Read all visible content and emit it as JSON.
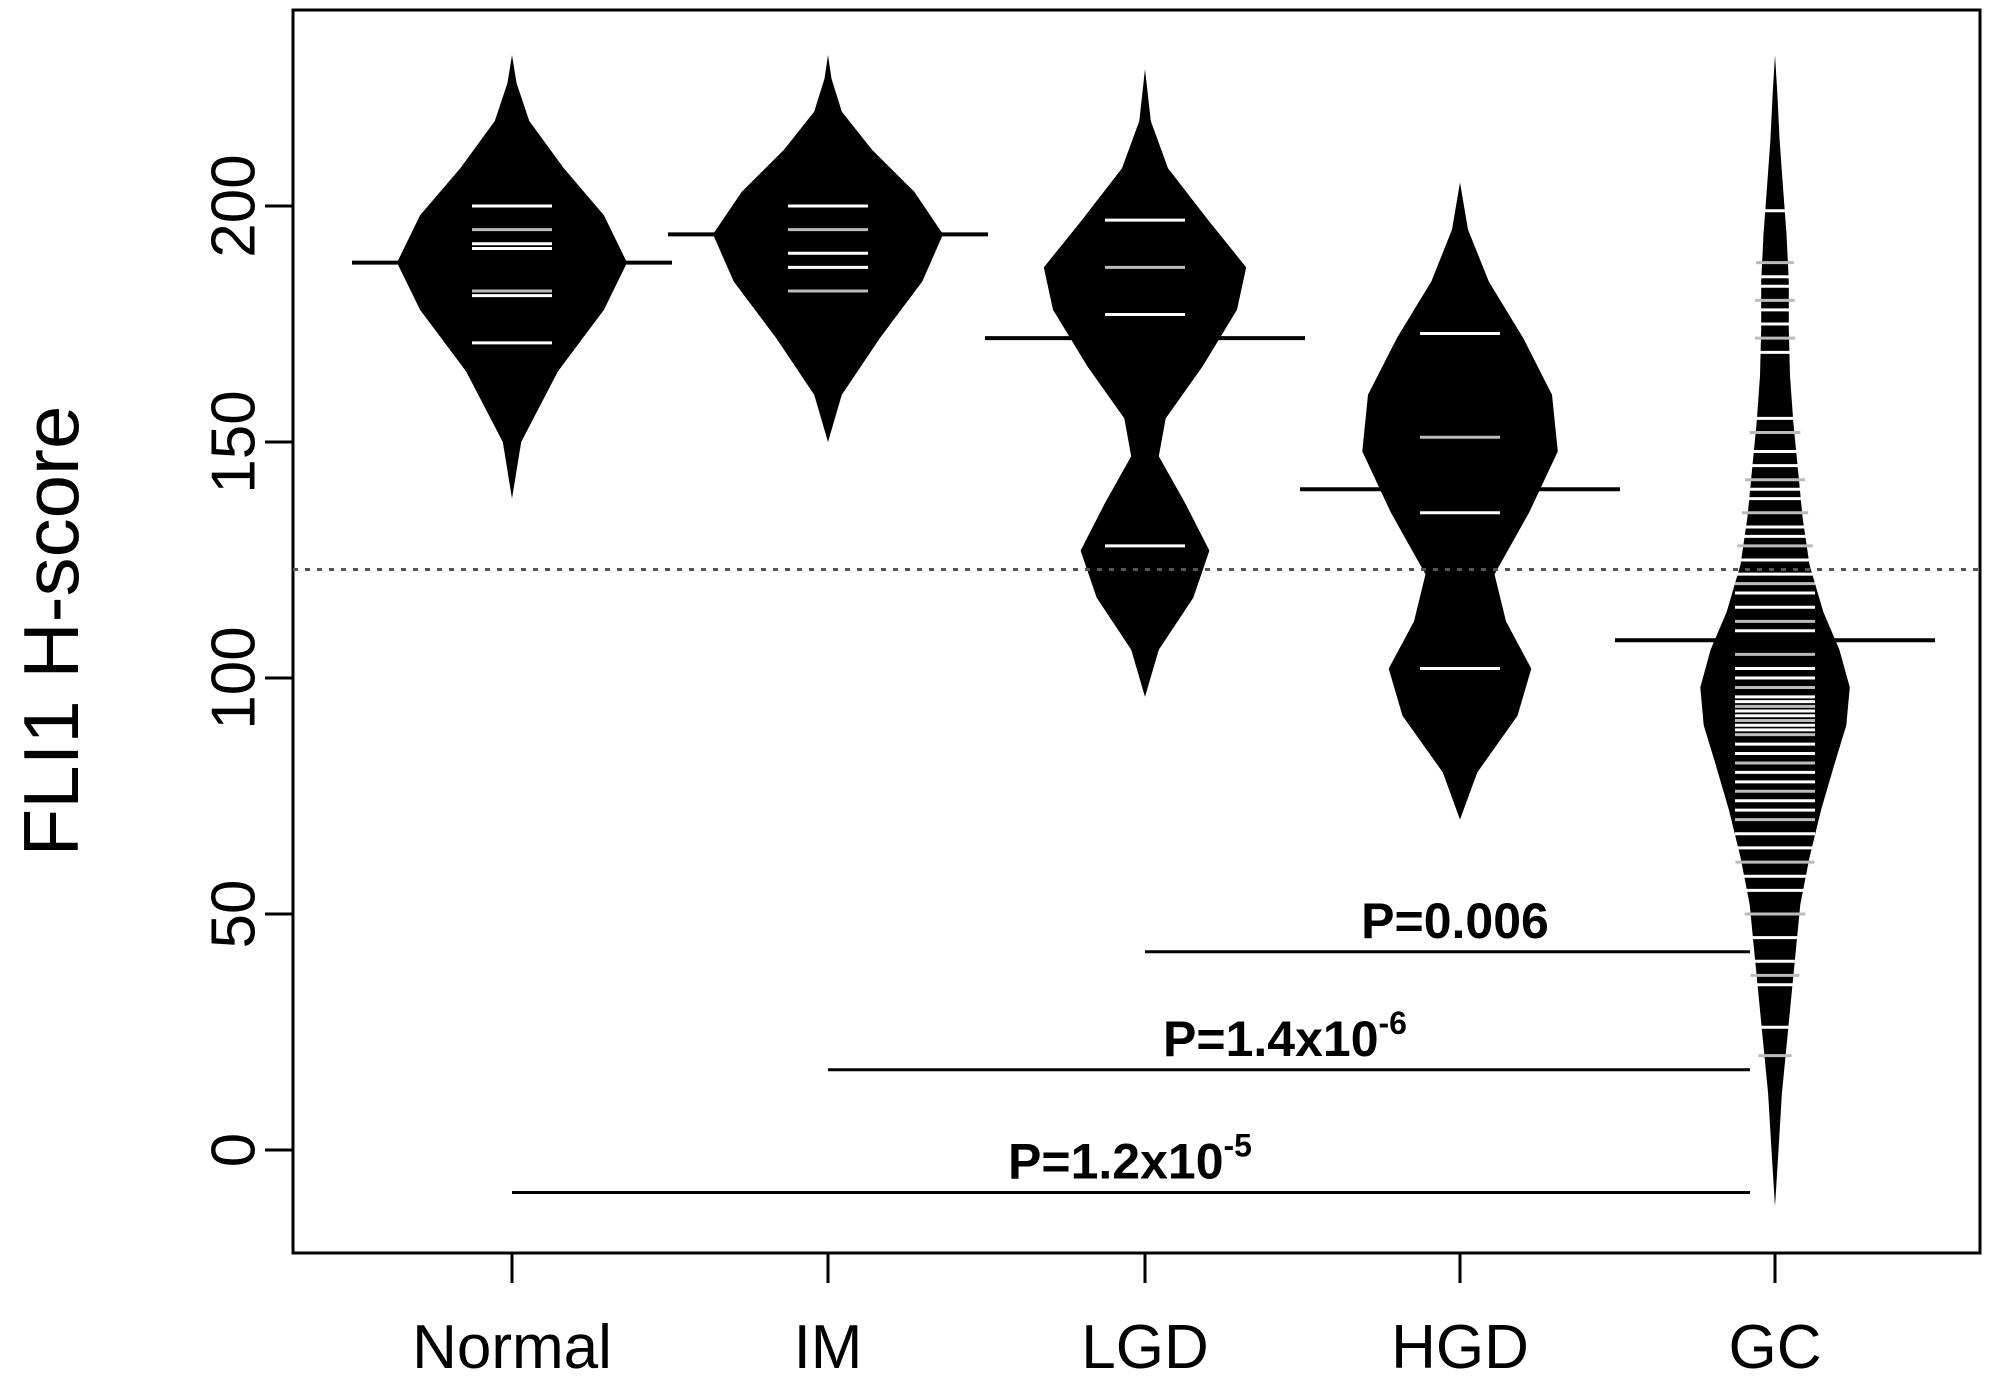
{
  "chart_data": {
    "type": "beanplot",
    "title": "",
    "xlabel": "",
    "ylabel": "FLI1 H-score",
    "ylim": [
      -22,
      245
    ],
    "yticks": [
      "0",
      "50",
      "100",
      "150",
      "200"
    ],
    "ytick_values": [
      0,
      50,
      100,
      150,
      200
    ],
    "categories": [
      "Normal",
      "IM",
      "LGD",
      "HGD",
      "GC"
    ],
    "overall_mean_dotted_line": 123,
    "groups": [
      {
        "name": "Normal",
        "mean": 188,
        "range": [
          138,
          232
        ],
        "points": [
          200,
          195,
          192,
          191,
          182,
          181,
          171
        ],
        "density": [
          [
            138,
            0
          ],
          [
            150,
            0.08
          ],
          [
            165,
            0.4
          ],
          [
            178,
            0.8
          ],
          [
            188,
            1.0
          ],
          [
            198,
            0.8
          ],
          [
            208,
            0.45
          ],
          [
            218,
            0.15
          ],
          [
            226,
            0.04
          ],
          [
            232,
            0
          ]
        ]
      },
      {
        "name": "IM",
        "mean": 194,
        "range": [
          150,
          232
        ],
        "points": [
          200,
          195,
          190,
          187,
          182
        ],
        "density": [
          [
            150,
            0
          ],
          [
            160,
            0.12
          ],
          [
            172,
            0.45
          ],
          [
            184,
            0.82
          ],
          [
            194,
            1.0
          ],
          [
            203,
            0.75
          ],
          [
            212,
            0.38
          ],
          [
            220,
            0.12
          ],
          [
            227,
            0.03
          ],
          [
            232,
            0
          ]
        ]
      },
      {
        "name": "LGD",
        "mean": 172,
        "range": [
          96,
          229
        ],
        "points": [
          197,
          187,
          177,
          128
        ],
        "density": [
          [
            96,
            0
          ],
          [
            106,
            0.12
          ],
          [
            117,
            0.42
          ],
          [
            127,
            0.56
          ],
          [
            137,
            0.35
          ],
          [
            147,
            0.12
          ],
          [
            155,
            0.18
          ],
          [
            166,
            0.5
          ],
          [
            178,
            0.8
          ],
          [
            187,
            0.88
          ],
          [
            197,
            0.55
          ],
          [
            208,
            0.2
          ],
          [
            218,
            0.05
          ],
          [
            229,
            0
          ]
        ]
      },
      {
        "name": "HGD",
        "mean": 140,
        "range": [
          70,
          205
        ],
        "points": [
          173,
          151,
          135,
          102
        ],
        "density": [
          [
            70,
            0
          ],
          [
            80,
            0.15
          ],
          [
            92,
            0.5
          ],
          [
            102,
            0.62
          ],
          [
            112,
            0.4
          ],
          [
            122,
            0.3
          ],
          [
            135,
            0.6
          ],
          [
            148,
            0.85
          ],
          [
            160,
            0.8
          ],
          [
            172,
            0.55
          ],
          [
            184,
            0.25
          ],
          [
            195,
            0.07
          ],
          [
            205,
            0
          ]
        ]
      },
      {
        "name": "GC",
        "mean": 108,
        "range": [
          -12,
          232
        ],
        "points": [
          199,
          188,
          185,
          183,
          180,
          178,
          175,
          172,
          169,
          155,
          152,
          148,
          145,
          142,
          140,
          138,
          135,
          132,
          130,
          128,
          125,
          122,
          120,
          118,
          115,
          112,
          110,
          108,
          105,
          102,
          100,
          98,
          96,
          95,
          94,
          93,
          92,
          91,
          90,
          89,
          88,
          86,
          84,
          82,
          80,
          78,
          76,
          74,
          72,
          70,
          67,
          64,
          61,
          58,
          55,
          50,
          45,
          40,
          37,
          35,
          26,
          20
        ],
        "density": [
          [
            -12,
            0
          ],
          [
            0,
            0.03
          ],
          [
            12,
            0.06
          ],
          [
            22,
            0.1
          ],
          [
            32,
            0.14
          ],
          [
            42,
            0.18
          ],
          [
            52,
            0.22
          ],
          [
            62,
            0.3
          ],
          [
            72,
            0.4
          ],
          [
            82,
            0.52
          ],
          [
            90,
            0.62
          ],
          [
            98,
            0.65
          ],
          [
            106,
            0.56
          ],
          [
            114,
            0.42
          ],
          [
            124,
            0.3
          ],
          [
            134,
            0.24
          ],
          [
            144,
            0.2
          ],
          [
            154,
            0.16
          ],
          [
            164,
            0.13
          ],
          [
            174,
            0.12
          ],
          [
            184,
            0.12
          ],
          [
            194,
            0.1
          ],
          [
            204,
            0.07
          ],
          [
            214,
            0.04
          ],
          [
            224,
            0.02
          ],
          [
            232,
            0
          ]
        ]
      }
    ],
    "comparisons": [
      {
        "from": "LGD",
        "to": "GC",
        "y": 42,
        "label": "P=0.006",
        "label_base": "P=0.006",
        "label_exp": ""
      },
      {
        "from": "IM",
        "to": "GC",
        "y": 17,
        "label": "P=1.4x10-6",
        "label_base": "P=1.4x10",
        "label_exp": "-6"
      },
      {
        "from": "Normal",
        "to": "GC",
        "y": -9,
        "label": "P=1.2x10-5",
        "label_base": "P=1.2x10",
        "label_exp": "-5"
      }
    ]
  }
}
